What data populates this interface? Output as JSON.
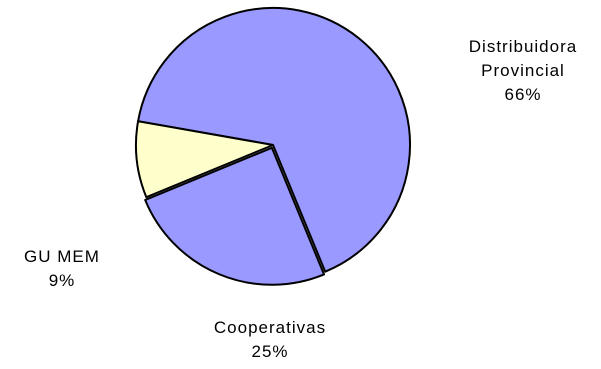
{
  "chart_data": {
    "type": "pie",
    "slices": [
      {
        "label_lines": [
          "Distribuidora",
          "Provincial"
        ],
        "value": 66,
        "value_label": "66%",
        "color": "#9999ff"
      },
      {
        "label_lines": [
          "Cooperativas"
        ],
        "value": 25,
        "value_label": "25%",
        "color": "#9999ff"
      },
      {
        "label_lines": [
          "GU MEM"
        ],
        "value": 9,
        "value_label": "9%",
        "color": "#ffffcc"
      }
    ],
    "start_angle_deg": -170,
    "exploded_slice": 1,
    "legend": "none"
  }
}
